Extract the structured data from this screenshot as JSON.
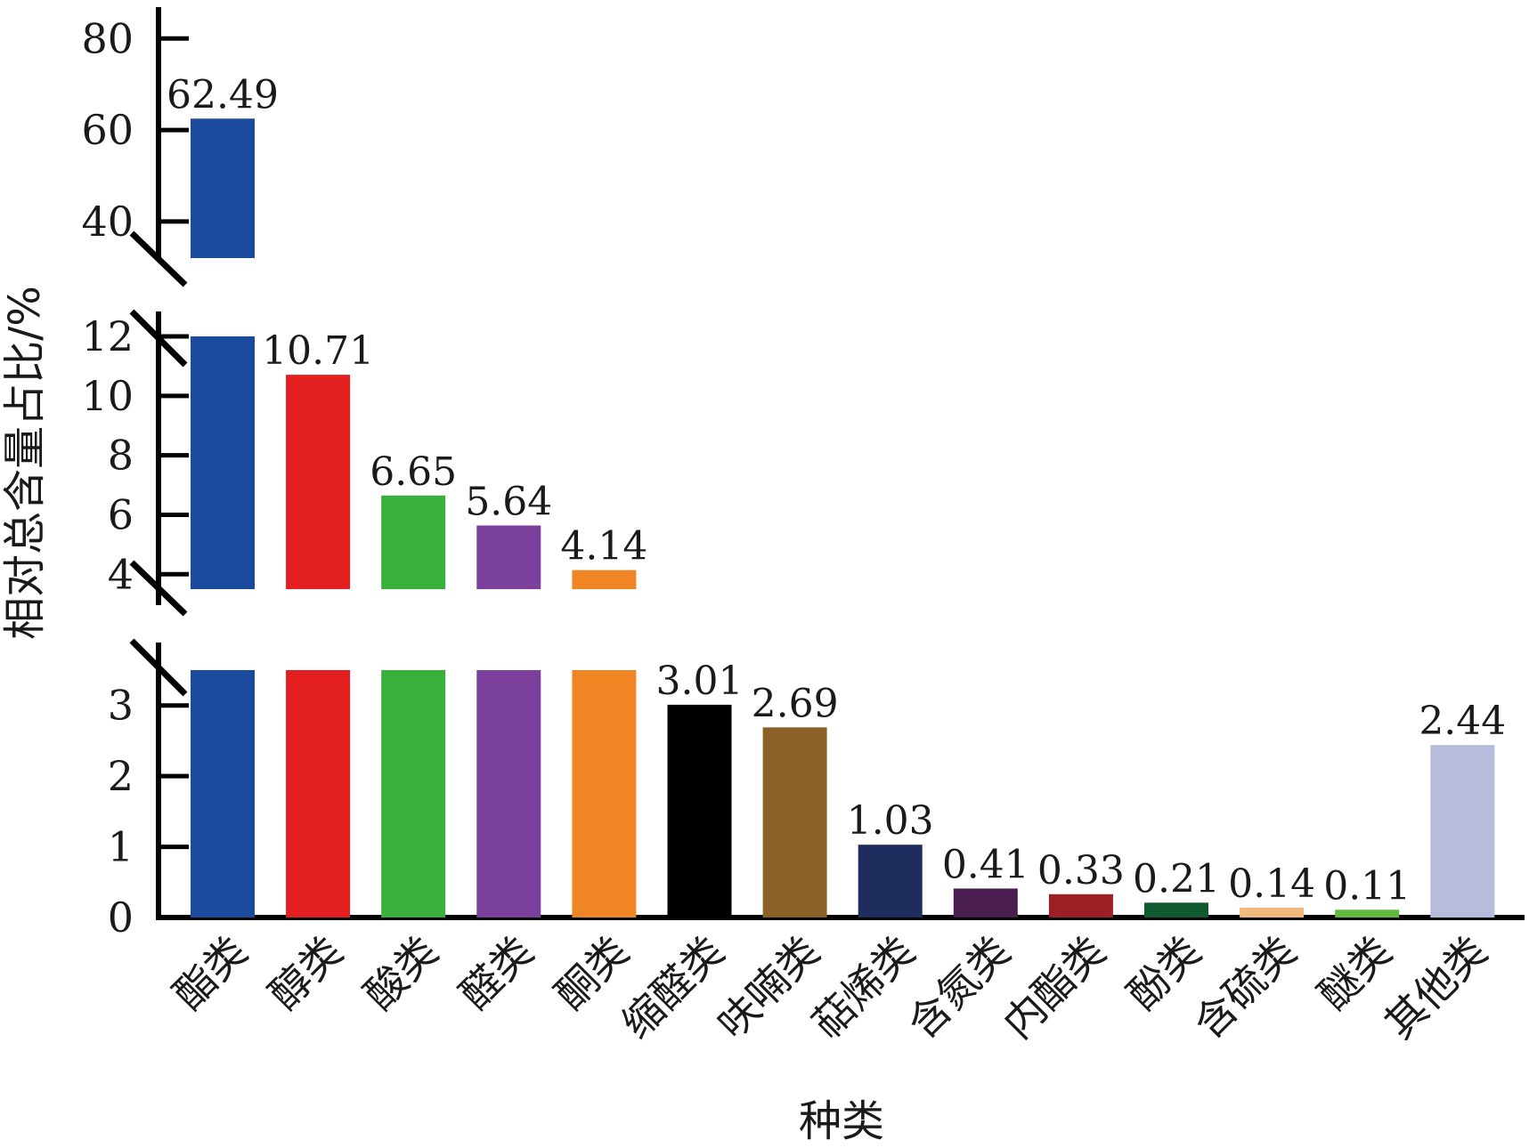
{
  "chart_data": {
    "type": "bar",
    "title": "",
    "xlabel": "种类",
    "ylabel": "相对总含量占比/%",
    "categories": [
      "酯类",
      "醇类",
      "酸类",
      "醛类",
      "酮类",
      "缩醛类",
      "呋喃类",
      "萜烯类",
      "含氮类",
      "内酯类",
      "酚类",
      "含硫类",
      "醚类",
      "其他类"
    ],
    "values": [
      62.49,
      10.71,
      6.65,
      5.64,
      4.14,
      3.01,
      2.69,
      1.03,
      0.41,
      0.33,
      0.21,
      0.14,
      0.11,
      2.44
    ],
    "value_labels": [
      "62.49",
      "10.71",
      "6.65",
      "5.64",
      "4.14",
      "3.01",
      "2.69",
      "1.03",
      "0.41",
      "0.33",
      "0.21",
      "0.14",
      "0.11",
      "2.44"
    ],
    "colors": [
      "#1a4b9c",
      "#e3201f",
      "#39b03c",
      "#7b3f9c",
      "#ef8523",
      "#000000",
      "#8c6127",
      "#1e2c5e",
      "#4a1e4e",
      "#9c1f26",
      "#0e5a2e",
      "#f1b97d",
      "#5fb93c",
      "#b8bcdc"
    ],
    "broken_axis": true,
    "segments": [
      {
        "ylim": [
          32,
          82
        ],
        "ticks": [
          "40",
          "60",
          "80"
        ],
        "tick_values": [
          40,
          60,
          80
        ]
      },
      {
        "ylim": [
          3.5,
          12
        ],
        "ticks": [
          "4",
          "6",
          "8",
          "10",
          "12"
        ],
        "tick_values": [
          4,
          6,
          8,
          10,
          12
        ]
      },
      {
        "ylim": [
          0,
          3.5
        ],
        "ticks": [
          "0",
          "1",
          "2",
          "3"
        ],
        "tick_values": [
          0,
          1,
          2,
          3
        ]
      }
    ],
    "grid": false,
    "legend": "none"
  }
}
